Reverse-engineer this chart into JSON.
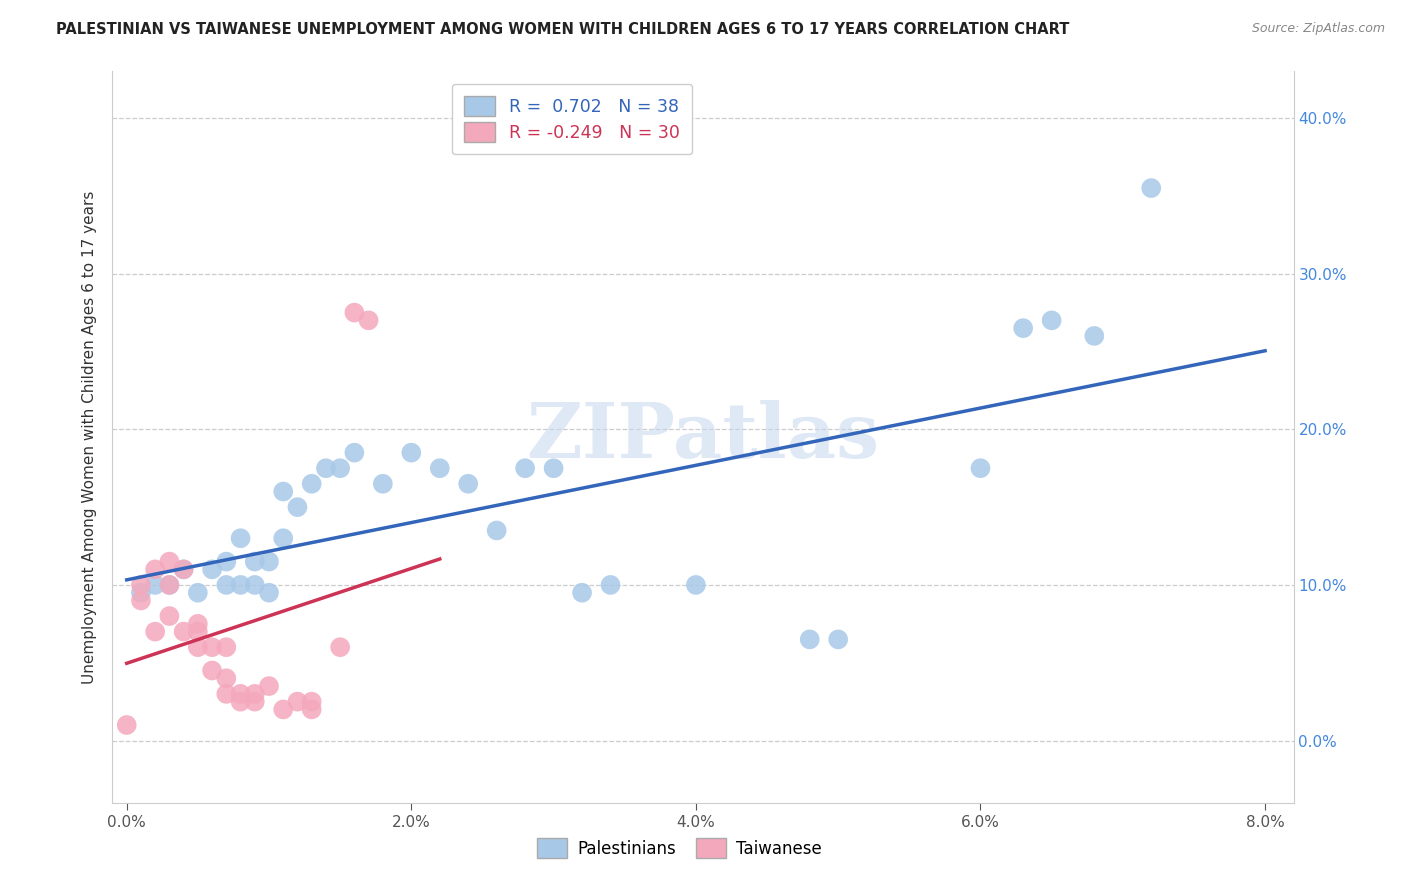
{
  "title": "PALESTINIAN VS TAIWANESE UNEMPLOYMENT AMONG WOMEN WITH CHILDREN AGES 6 TO 17 YEARS CORRELATION CHART",
  "source": "Source: ZipAtlas.com",
  "ylabel": "Unemployment Among Women with Children Ages 6 to 17 years",
  "xlabel_ticks": [
    "0.0%",
    "2.0%",
    "4.0%",
    "6.0%",
    "8.0%"
  ],
  "xlabel_vals": [
    0.0,
    0.02,
    0.04,
    0.06,
    0.08
  ],
  "ylabel_ticks_right": [
    "40.0%",
    "30.0%",
    "20.0%",
    "10.0%",
    "0.0%"
  ],
  "ylabel_vals": [
    0.0,
    0.1,
    0.2,
    0.3,
    0.4
  ],
  "xlim": [
    -0.001,
    0.082
  ],
  "ylim": [
    -0.04,
    0.43
  ],
  "palestinian_R": 0.702,
  "palestinian_N": 38,
  "taiwanese_R": -0.249,
  "taiwanese_N": 30,
  "watermark": "ZIPatlas",
  "palestinian_color": "#a8c8e8",
  "taiwanese_color": "#f4a8bc",
  "palestinian_line_color": "#3366bb",
  "taiwanese_line_color": "#cc3355",
  "background_color": "#ffffff",
  "grid_color": "#cccccc",
  "palestinian_x": [
    0.001,
    0.002,
    0.003,
    0.004,
    0.005,
    0.006,
    0.007,
    0.007,
    0.008,
    0.008,
    0.009,
    0.009,
    0.01,
    0.01,
    0.011,
    0.011,
    0.012,
    0.013,
    0.014,
    0.015,
    0.016,
    0.018,
    0.02,
    0.022,
    0.024,
    0.026,
    0.028,
    0.03,
    0.032,
    0.034,
    0.04,
    0.048,
    0.05,
    0.06,
    0.063,
    0.065,
    0.068,
    0.072
  ],
  "palestinian_y": [
    0.095,
    0.1,
    0.1,
    0.11,
    0.095,
    0.11,
    0.1,
    0.115,
    0.1,
    0.13,
    0.1,
    0.115,
    0.095,
    0.115,
    0.16,
    0.13,
    0.15,
    0.165,
    0.175,
    0.175,
    0.185,
    0.165,
    0.185,
    0.175,
    0.165,
    0.135,
    0.175,
    0.175,
    0.095,
    0.1,
    0.1,
    0.065,
    0.065,
    0.175,
    0.265,
    0.27,
    0.26,
    0.355
  ],
  "taiwanese_x": [
    0.0,
    0.001,
    0.001,
    0.002,
    0.002,
    0.003,
    0.003,
    0.003,
    0.004,
    0.004,
    0.005,
    0.005,
    0.005,
    0.006,
    0.006,
    0.007,
    0.007,
    0.007,
    0.008,
    0.008,
    0.009,
    0.009,
    0.01,
    0.011,
    0.012,
    0.013,
    0.013,
    0.015,
    0.016,
    0.017
  ],
  "taiwanese_y": [
    0.01,
    0.1,
    0.09,
    0.11,
    0.07,
    0.115,
    0.1,
    0.08,
    0.11,
    0.07,
    0.07,
    0.06,
    0.075,
    0.06,
    0.045,
    0.06,
    0.04,
    0.03,
    0.025,
    0.03,
    0.025,
    0.03,
    0.035,
    0.02,
    0.025,
    0.025,
    0.02,
    0.06,
    0.275,
    0.27
  ]
}
